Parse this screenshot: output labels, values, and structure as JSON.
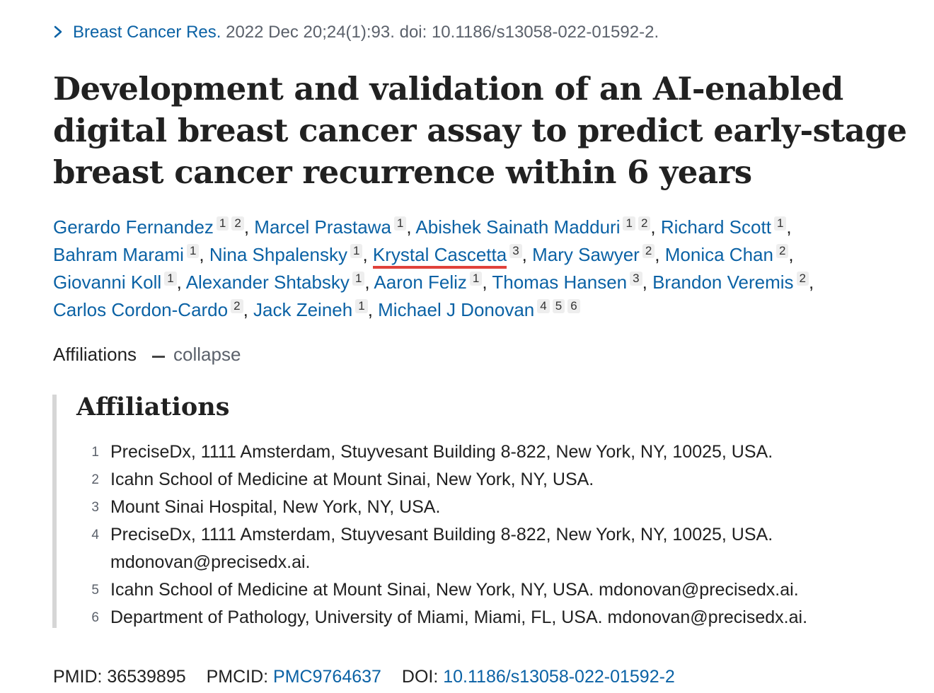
{
  "citation": {
    "journal": "Breast Cancer Res.",
    "details": "2022 Dec 20;24(1):93. doi: 10.1186/s13058-022-01592-2."
  },
  "title": "Development and validation of an AI-enabled digital breast cancer assay to predict early-stage breast cancer recurrence within 6 years",
  "authors": [
    {
      "name": "Gerardo Fernandez",
      "affs": [
        "1",
        "2"
      ]
    },
    {
      "name": "Marcel Prastawa",
      "affs": [
        "1"
      ]
    },
    {
      "name": "Abishek Sainath Madduri",
      "affs": [
        "1",
        "2"
      ]
    },
    {
      "name": "Richard Scott",
      "affs": [
        "1"
      ]
    },
    {
      "name": "Bahram Marami",
      "affs": [
        "1"
      ]
    },
    {
      "name": "Nina Shpalensky",
      "affs": [
        "1"
      ]
    },
    {
      "name": "Krystal Cascetta",
      "affs": [
        "3"
      ],
      "underline_color": "#e0413a"
    },
    {
      "name": "Mary Sawyer",
      "affs": [
        "2"
      ]
    },
    {
      "name": "Monica Chan",
      "affs": [
        "2"
      ]
    },
    {
      "name": "Giovanni Koll",
      "affs": [
        "1"
      ]
    },
    {
      "name": "Alexander Shtabsky",
      "affs": [
        "1"
      ]
    },
    {
      "name": "Aaron Feliz",
      "affs": [
        "1"
      ]
    },
    {
      "name": "Thomas Hansen",
      "affs": [
        "3"
      ]
    },
    {
      "name": "Brandon Veremis",
      "affs": [
        "2"
      ]
    },
    {
      "name": "Carlos Cordon-Cardo",
      "affs": [
        "2"
      ]
    },
    {
      "name": "Jack Zeineh",
      "affs": [
        "1"
      ]
    },
    {
      "name": "Michael J Donovan",
      "affs": [
        "4",
        "5",
        "6"
      ]
    }
  ],
  "affiliations_toggle": {
    "label": "Affiliations",
    "action": "collapse"
  },
  "affiliations": {
    "heading": "Affiliations",
    "items": [
      {
        "num": "1",
        "lines": [
          "PreciseDx, 1111 Amsterdam, Stuyvesant Building 8-822, New York, NY, 10025, USA."
        ]
      },
      {
        "num": "2",
        "lines": [
          "Icahn School of Medicine at Mount Sinai, New York, NY, USA."
        ]
      },
      {
        "num": "3",
        "lines": [
          "Mount Sinai Hospital, New York, NY, USA."
        ]
      },
      {
        "num": "4",
        "lines": [
          "PreciseDx, 1111 Amsterdam, Stuyvesant Building 8-822, New York, NY, 10025, USA.",
          "mdonovan@precisedx.ai."
        ]
      },
      {
        "num": "5",
        "lines": [
          "Icahn School of Medicine at Mount Sinai, New York, NY, USA. mdonovan@precisedx.ai."
        ]
      },
      {
        "num": "6",
        "lines": [
          "Department of Pathology, University of Miami, Miami, FL, USA. mdonovan@precisedx.ai."
        ]
      }
    ]
  },
  "identifiers": {
    "pmid_label": "PMID:",
    "pmid": "36539895",
    "pmcid_label": "PMCID:",
    "pmcid": "PMC9764637",
    "doi_label": "DOI:",
    "doi": "10.1186/s13058-022-01592-2"
  },
  "colors": {
    "link": "#0b62a5",
    "highlight_underline": "#e0413a"
  }
}
